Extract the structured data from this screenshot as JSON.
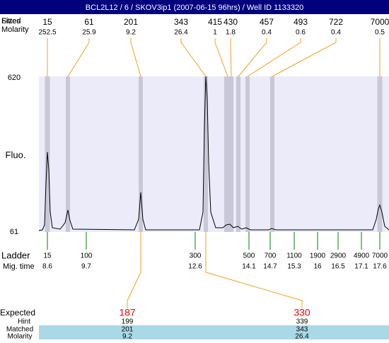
{
  "header": {
    "title": "BCL2L12 / 6 / SKOV3ip1 (2007-06-15 96hrs) / Well ID 1133320"
  },
  "peaks": {
    "size_labels": [
      "Sizes",
      "Fitted"
    ],
    "molarity_label": "Molarity",
    "items": [
      {
        "size": 15,
        "molarity": 252.5
      },
      {
        "size": 61,
        "molarity": 25.9
      },
      {
        "size": 201,
        "molarity": 9.2
      },
      {
        "size": 343,
        "molarity": 26.4
      },
      {
        "size": 415,
        "molarity": 1
      },
      {
        "size": 430,
        "molarity": 1.8
      },
      {
        "size": 457,
        "molarity": 0.4
      },
      {
        "size": 493,
        "molarity": 0.6
      },
      {
        "size": 722,
        "molarity": 0.4
      },
      {
        "size": 7000,
        "molarity": 0.5
      }
    ]
  },
  "axis": {
    "top_label": "620",
    "bottom_label": "61",
    "title": "Fluo."
  },
  "ladder": {
    "label": "Ladder",
    "time_label": "Mig. time",
    "items": [
      {
        "size": 15,
        "time": 8.6
      },
      {
        "size": 100,
        "time": 9.7
      },
      {
        "size": 300,
        "time": 12.6
      },
      {
        "size": 500,
        "time": 14.1
      },
      {
        "size": 700,
        "time": 14.7
      },
      {
        "size": 1100,
        "time": 15.3
      },
      {
        "size": 1900,
        "time": 16
      },
      {
        "size": 2900,
        "time": 16.5
      },
      {
        "size": 4900,
        "time": 17.1
      },
      {
        "size": 7000,
        "time": 17.6
      }
    ]
  },
  "expected": {
    "label": "Expected",
    "hint_label": "Hint",
    "matched_label": "Matched",
    "molarity_label": "Molarity",
    "items": [
      {
        "expected": 187,
        "hint": 199,
        "matched": 201,
        "molarity": 9.2
      },
      {
        "expected": 330,
        "hint": 339,
        "matched": 343,
        "molarity": 26.4
      }
    ]
  }
}
